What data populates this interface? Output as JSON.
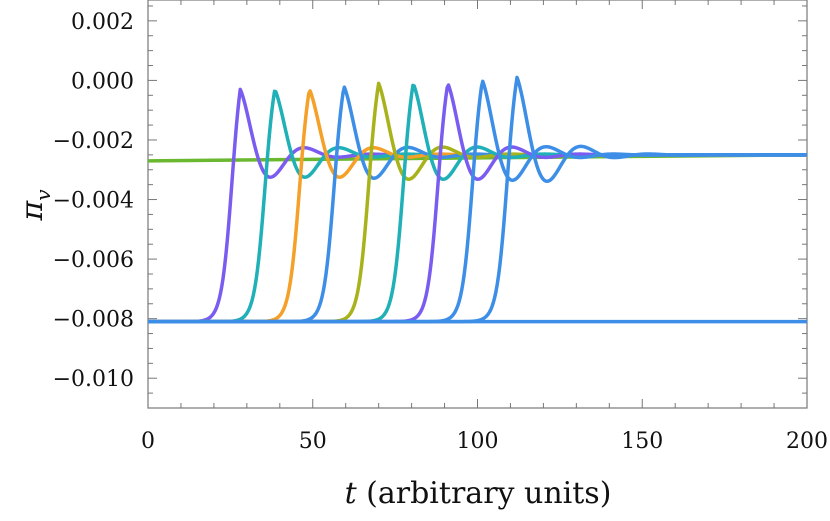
{
  "chart_data": {
    "type": "line",
    "xlabel_var": "t",
    "xlabel_rest": " (arbitrary units)",
    "ylabel": "π",
    "ylabel_sub": "v",
    "xlim": [
      0,
      200
    ],
    "ylim": [
      -0.011,
      0.0027
    ],
    "xticks": [
      0,
      50,
      100,
      150,
      200
    ],
    "xtick_labels": [
      "0",
      "50",
      "100",
      "150",
      "200"
    ],
    "yticks": [
      0.002,
      0.0,
      -0.002,
      -0.004,
      -0.006,
      -0.008,
      -0.01
    ],
    "ytick_labels": [
      "0.002",
      "0.000",
      "−0.002",
      "−0.004",
      "−0.006",
      "−0.008",
      "−0.010"
    ],
    "grid": false,
    "baseline": -0.0081,
    "settle_level": -0.0025,
    "series": [
      {
        "color": "#7b5cf0",
        "onset": 25.5,
        "peak_time": 28,
        "peak": -0.0003
      },
      {
        "color": "#1fb0b8",
        "onset": 35.5,
        "peak_time": 38.5,
        "peak": -0.0003
      },
      {
        "color": "#f5a028",
        "onset": 46,
        "peak_time": 49,
        "peak": -0.0003
      },
      {
        "color": "#3d8ee6",
        "onset": 56.5,
        "peak_time": 59.5,
        "peak": -0.0002
      },
      {
        "color": "#a8b21a",
        "onset": 67,
        "peak_time": 70,
        "peak": -0.0001
      },
      {
        "color": "#1fb0b8",
        "onset": 77.5,
        "peak_time": 80.5,
        "peak": -0.0001
      },
      {
        "color": "#7b5cf0",
        "onset": 88,
        "peak_time": 91,
        "peak": -0.0001
      },
      {
        "color": "#3d8ee6",
        "onset": 98.5,
        "peak_time": 101.5,
        "peak": 0.0
      },
      {
        "color": "#3d8ee6",
        "onset": 109,
        "peak_time": 112,
        "peak": 0.0001
      }
    ],
    "reference_lines": [
      {
        "color": "#6ab830",
        "values": [
          [
            0,
            -0.0027
          ],
          [
            50,
            -0.00265
          ],
          [
            100,
            -0.0026
          ],
          [
            150,
            -0.00255
          ],
          [
            200,
            -0.0025
          ]
        ]
      },
      {
        "color": "#3d8ee6",
        "values": [
          [
            0,
            -0.0081
          ],
          [
            200,
            -0.0081
          ]
        ]
      }
    ]
  }
}
